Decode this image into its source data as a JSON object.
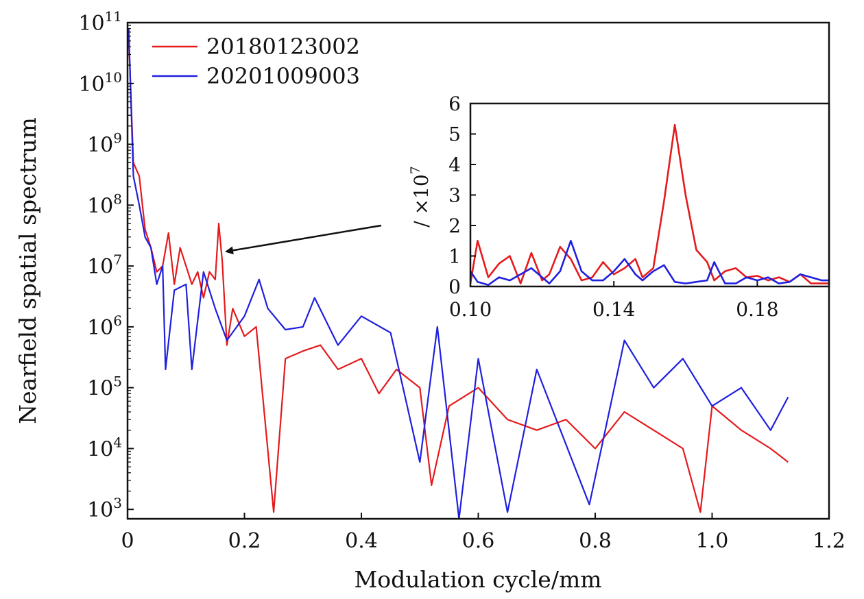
{
  "chart_data": [
    {
      "type": "line",
      "xlabel": "Modulation cycle/mm",
      "ylabel": "Nearfield spatial spectrum",
      "yscale": "log",
      "xlim": [
        0,
        1.2
      ],
      "ylim": [
        700,
        100000000000
      ],
      "x_ticks": [
        "0",
        "0.2",
        "0.4",
        "0.6",
        "0.8",
        "1.0",
        "1.2"
      ],
      "y_ticks": [
        {
          "base": "10",
          "exp": "11"
        },
        {
          "base": "10",
          "exp": "10"
        },
        {
          "base": "10",
          "exp": "9"
        },
        {
          "base": "10",
          "exp": "8"
        },
        {
          "base": "10",
          "exp": "7"
        },
        {
          "base": "10",
          "exp": "6"
        },
        {
          "base": "10",
          "exp": "5"
        },
        {
          "base": "10",
          "exp": "4"
        },
        {
          "base": "10",
          "exp": "3"
        }
      ],
      "legend_position": "top-left",
      "grid": false,
      "series": [
        {
          "name": "20180123002",
          "color": "#e41a1c",
          "x": [
            0.002,
            0.01,
            0.02,
            0.03,
            0.04,
            0.05,
            0.06,
            0.07,
            0.08,
            0.09,
            0.1,
            0.11,
            0.12,
            0.13,
            0.14,
            0.15,
            0.156,
            0.162,
            0.17,
            0.18,
            0.2,
            0.22,
            0.25,
            0.27,
            0.3,
            0.33,
            0.36,
            0.4,
            0.43,
            0.46,
            0.5,
            0.52,
            0.55,
            0.6,
            0.65,
            0.7,
            0.75,
            0.8,
            0.85,
            0.9,
            0.95,
            0.98,
            1.0,
            1.05,
            1.1,
            1.13
          ],
          "values": [
            60000000000,
            500000000,
            300000000,
            40000000,
            20000000,
            8000000,
            10000000,
            35000000,
            5000000,
            20000000,
            10000000,
            5000000,
            8000000,
            3000000,
            8000000,
            6000000,
            50000000,
            12000000,
            500000,
            2000000,
            700000,
            1000000,
            900,
            300000,
            400000,
            500000,
            200000,
            300000,
            80000,
            200000,
            100000,
            2500,
            50000,
            100000,
            30000,
            20000,
            30000,
            10000,
            40000,
            20000,
            10000,
            900,
            50000,
            20000,
            10000,
            6000
          ]
        },
        {
          "name": "20201009003",
          "color": "#1f1fe0",
          "x": [
            0.002,
            0.01,
            0.02,
            0.03,
            0.04,
            0.05,
            0.06,
            0.065,
            0.08,
            0.1,
            0.11,
            0.13,
            0.15,
            0.17,
            0.2,
            0.225,
            0.24,
            0.27,
            0.3,
            0.32,
            0.36,
            0.4,
            0.45,
            0.5,
            0.53,
            0.567,
            0.6,
            0.65,
            0.7,
            0.79,
            0.85,
            0.9,
            0.95,
            1.0,
            1.05,
            1.1,
            1.13
          ],
          "values": [
            80000000000,
            300000000,
            100000000,
            30000000,
            20000000,
            5000000,
            10000000,
            200000,
            4000000,
            5000000,
            200000,
            8000000,
            2000000,
            600000,
            1500000,
            6000000,
            2000000,
            900000,
            1000000,
            3000000,
            500000,
            1500000,
            800000,
            6000,
            1000000,
            700,
            300000,
            900,
            200000,
            1200,
            600000,
            100000,
            300000,
            50000,
            100000,
            20000,
            70000
          ]
        }
      ]
    },
    {
      "type": "line",
      "inset": true,
      "ylabel": "/ ×10",
      "ylabel_exp": "7",
      "xlim": [
        0.1,
        0.2
      ],
      "ylim": [
        0,
        6
      ],
      "x_ticks": [
        "0.10",
        "0.14",
        "0.18"
      ],
      "y_ticks": [
        "0",
        "1",
        "2",
        "3",
        "4",
        "5",
        "6"
      ],
      "series": [
        {
          "name": "20180123002",
          "color": "#e41a1c",
          "x": [
            0.1,
            0.102,
            0.105,
            0.108,
            0.111,
            0.114,
            0.117,
            0.12,
            0.122,
            0.125,
            0.128,
            0.131,
            0.134,
            0.137,
            0.14,
            0.143,
            0.146,
            0.148,
            0.151,
            0.154,
            0.157,
            0.16,
            0.163,
            0.166,
            0.168,
            0.171,
            0.174,
            0.177,
            0.18,
            0.183,
            0.186,
            0.189,
            0.192,
            0.195,
            0.198,
            0.2
          ],
          "values": [
            0.1,
            1.5,
            0.3,
            0.75,
            1.0,
            0.1,
            1.1,
            0.2,
            0.4,
            1.3,
            0.9,
            0.2,
            0.3,
            0.8,
            0.4,
            0.6,
            0.9,
            0.3,
            0.6,
            2.8,
            5.3,
            3.0,
            1.2,
            0.8,
            0.2,
            0.5,
            0.6,
            0.3,
            0.35,
            0.2,
            0.3,
            0.15,
            0.4,
            0.1,
            0.1,
            0.1
          ]
        },
        {
          "name": "20201009003",
          "color": "#1f1fe0",
          "x": [
            0.1,
            0.102,
            0.105,
            0.108,
            0.111,
            0.114,
            0.117,
            0.12,
            0.122,
            0.125,
            0.128,
            0.131,
            0.134,
            0.137,
            0.14,
            0.143,
            0.146,
            0.148,
            0.151,
            0.154,
            0.157,
            0.16,
            0.163,
            0.166,
            0.168,
            0.171,
            0.174,
            0.177,
            0.18,
            0.183,
            0.186,
            0.189,
            0.192,
            0.195,
            0.198,
            0.2
          ],
          "values": [
            0.5,
            0.15,
            0.05,
            0.3,
            0.2,
            0.4,
            0.6,
            0.3,
            0.1,
            0.5,
            1.5,
            0.5,
            0.2,
            0.2,
            0.5,
            0.9,
            0.4,
            0.2,
            0.5,
            0.7,
            0.15,
            0.1,
            0.15,
            0.2,
            0.8,
            0.1,
            0.1,
            0.3,
            0.2,
            0.3,
            0.1,
            0.15,
            0.4,
            0.3,
            0.2,
            0.2
          ]
        }
      ]
    }
  ]
}
